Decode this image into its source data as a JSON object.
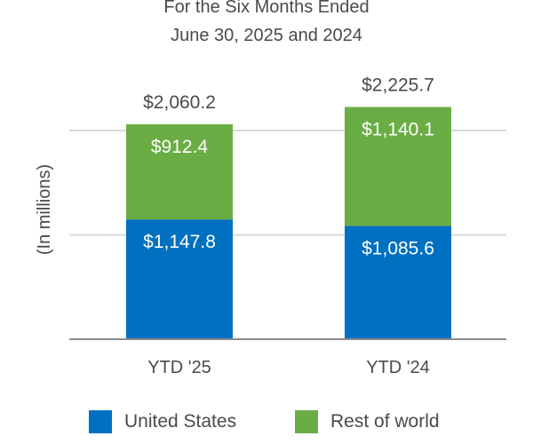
{
  "chart_data": {
    "type": "bar",
    "stacked": true,
    "title": "For the Six Months Ended",
    "subtitle": "June 30, 2025 and 2024",
    "ylabel": "(In millions)",
    "xlabel": "",
    "categories": [
      "YTD '25",
      "YTD '24"
    ],
    "series": [
      {
        "name": "United States",
        "values": [
          1147.8,
          1085.6
        ],
        "labels": [
          "$1,147.8",
          "$1,085.6"
        ],
        "color": "#0070c0"
      },
      {
        "name": "Rest of world",
        "values": [
          912.4,
          1140.1
        ],
        "labels": [
          "$912.4",
          "$1,140.1"
        ],
        "color": "#6aad45"
      }
    ],
    "totals": [
      2060.2,
      2225.7
    ],
    "total_labels": [
      "$2,060.2",
      "$2,225.7"
    ],
    "ylim": [
      0,
      2500
    ],
    "grid": true,
    "legend": "bottom"
  }
}
